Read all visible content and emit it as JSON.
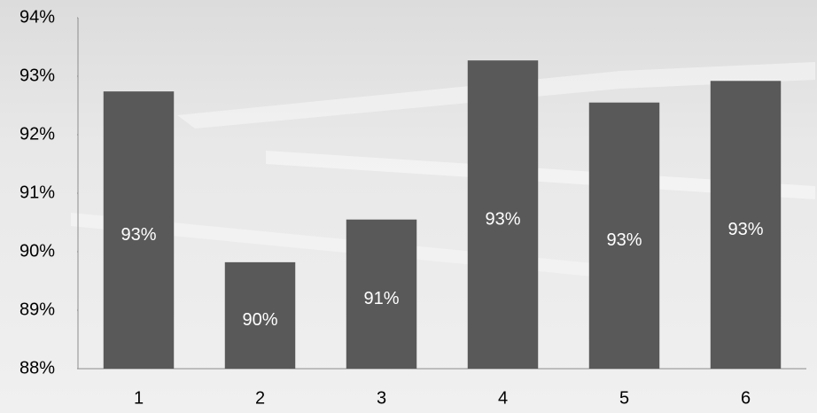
{
  "chart_data": {
    "type": "bar",
    "categories": [
      "1",
      "2",
      "3",
      "4",
      "5",
      "6"
    ],
    "values": [
      92.74,
      89.82,
      90.55,
      93.27,
      92.55,
      92.92
    ],
    "value_labels": [
      "93%",
      "90%",
      "91%",
      "93%",
      "93%",
      "93%"
    ],
    "color": "#595959",
    "ylim": [
      88,
      94
    ],
    "yticks": [
      {
        "value": 88,
        "label": "88%"
      },
      {
        "value": 89,
        "label": "89%"
      },
      {
        "value": 90,
        "label": "90%"
      },
      {
        "value": 91,
        "label": "91%"
      },
      {
        "value": 92,
        "label": "92%"
      },
      {
        "value": 93,
        "label": "93%"
      },
      {
        "value": 94,
        "label": "94%"
      }
    ],
    "grid": false
  }
}
